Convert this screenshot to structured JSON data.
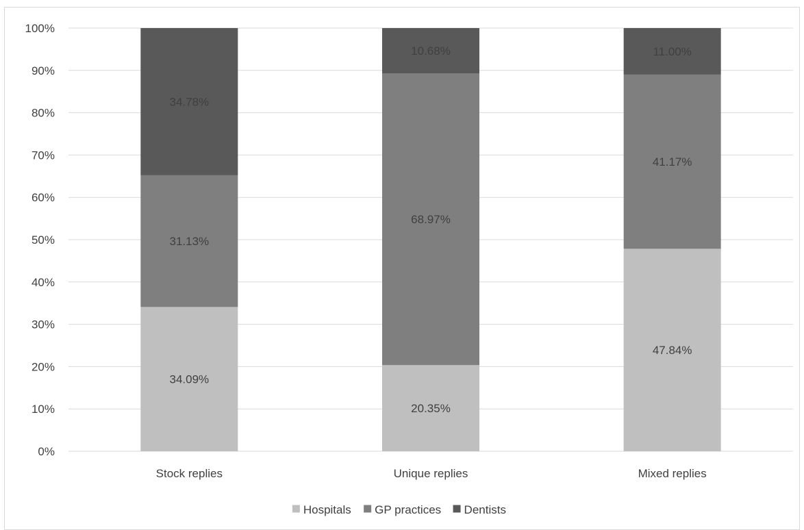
{
  "chart_data": {
    "type": "bar",
    "stacked": true,
    "percent_stacked": true,
    "categories": [
      "Stock replies",
      "Unique replies",
      "Mixed replies"
    ],
    "series": [
      {
        "name": "Hospitals",
        "values": [
          34.09,
          20.35,
          47.84
        ],
        "labels": [
          "34.09%",
          "20.35%",
          "47.84%"
        ],
        "color": "#bfbfbf"
      },
      {
        "name": "GP practices",
        "values": [
          31.13,
          68.97,
          41.17
        ],
        "labels": [
          "31.13%",
          "68.97%",
          "41.17%"
        ],
        "color": "#7f7f7f"
      },
      {
        "name": "Dentists",
        "values": [
          34.78,
          10.68,
          11.0
        ],
        "labels": [
          "34.78%",
          "10.68%",
          "11.00%"
        ],
        "color": "#595959"
      }
    ],
    "ylim": [
      0,
      100
    ],
    "y_ticks": [
      "0%",
      "10%",
      "20%",
      "30%",
      "40%",
      "50%",
      "60%",
      "70%",
      "80%",
      "90%",
      "100%"
    ],
    "grid": true,
    "legend_position": "bottom",
    "data_label_color": "#404040"
  }
}
